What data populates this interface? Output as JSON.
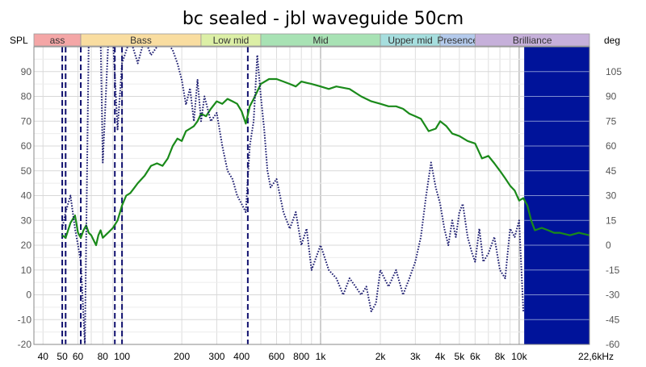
{
  "chart_data": {
    "type": "line",
    "title": "bc sealed - jbl waveguide 50cm",
    "y_left_label": "SPL",
    "y_right_label": "deg",
    "x_scale": "log",
    "xlim": [
      36,
      22600
    ],
    "ylim_left": [
      -20,
      100
    ],
    "ylim_right": [
      -60,
      120
    ],
    "grid": true,
    "x_ticks": [
      {
        "v": 40,
        "label": "40"
      },
      {
        "v": 50,
        "label": "50"
      },
      {
        "v": 60,
        "label": "60"
      },
      {
        "v": 80,
        "label": "80"
      },
      {
        "v": 100,
        "label": "100"
      },
      {
        "v": 200,
        "label": "200"
      },
      {
        "v": 300,
        "label": "300"
      },
      {
        "v": 400,
        "label": "400"
      },
      {
        "v": 600,
        "label": "600"
      },
      {
        "v": 800,
        "label": "800"
      },
      {
        "v": 1000,
        "label": "1k"
      },
      {
        "v": 2000,
        "label": "2k"
      },
      {
        "v": 3000,
        "label": "3k"
      },
      {
        "v": 4000,
        "label": "4k"
      },
      {
        "v": 5000,
        "label": "5k"
      },
      {
        "v": 6000,
        "label": "6k"
      },
      {
        "v": 8000,
        "label": "8k"
      },
      {
        "v": 10000,
        "label": "10k"
      },
      {
        "v": 22600,
        "label": "22,6kHz"
      }
    ],
    "y_left_ticks": [
      -20,
      -10,
      0,
      10,
      20,
      30,
      40,
      50,
      60,
      70,
      80,
      90
    ],
    "y_right_ticks": [
      -60,
      -45,
      -30,
      -15,
      0,
      15,
      30,
      45,
      60,
      75,
      90,
      105
    ],
    "bands": [
      {
        "label": "ass",
        "from": 36,
        "to": 62,
        "color": "#f4a6a6"
      },
      {
        "label": "Bass",
        "from": 62,
        "to": 250,
        "color": "#f9dda0"
      },
      {
        "label": "Low mid",
        "from": 250,
        "to": 500,
        "color": "#dcefa6"
      },
      {
        "label": "Mid",
        "from": 500,
        "to": 2000,
        "color": "#a8e2b4"
      },
      {
        "label": "Upper mid",
        "from": 2000,
        "to": 4000,
        "color": "#a6dede"
      },
      {
        "label": "Presence",
        "from": 4000,
        "to": 6000,
        "color": "#b4caec"
      },
      {
        "label": "Brilliance",
        "from": 6000,
        "to": 22600,
        "color": "#c6b0da"
      }
    ],
    "series": [
      {
        "kind": "magnitude",
        "axis": "left",
        "color": "#1a8a1a",
        "style": "solid",
        "x": [
          50,
          52,
          55,
          58,
          60,
          62,
          64,
          66,
          68,
          70,
          72,
          74,
          76,
          78,
          80,
          85,
          90,
          95,
          100,
          105,
          110,
          115,
          120,
          130,
          140,
          150,
          160,
          170,
          180,
          190,
          200,
          210,
          220,
          230,
          240,
          250,
          265,
          280,
          300,
          320,
          340,
          360,
          380,
          400,
          420,
          440,
          460,
          480,
          500,
          550,
          600,
          650,
          700,
          750,
          800,
          900,
          1000,
          1100,
          1200,
          1400,
          1600,
          1800,
          2000,
          2200,
          2400,
          2600,
          2800,
          3000,
          3200,
          3500,
          3800,
          4000,
          4300,
          4600,
          5000,
          5500,
          6000,
          6500,
          7000,
          7500,
          8000,
          8500,
          9000,
          9500,
          10000,
          10500,
          11000,
          11500,
          12000,
          13000,
          14000,
          15000,
          16000,
          18000,
          20000,
          22600
        ],
        "y": [
          24,
          23,
          29,
          32,
          25,
          23,
          26,
          28,
          25,
          24,
          22,
          20,
          24,
          26,
          23,
          25,
          27,
          30,
          36,
          40,
          41,
          43,
          45,
          48,
          52,
          53,
          52,
          55,
          60,
          63,
          62,
          66,
          67,
          68,
          70,
          73,
          72,
          75,
          78,
          77,
          79,
          78,
          77,
          74,
          69,
          76,
          79,
          82,
          85,
          87,
          87,
          86,
          85,
          84,
          86,
          85,
          84,
          83,
          84,
          83,
          80,
          78,
          77,
          76,
          76,
          75,
          73,
          72,
          71,
          66,
          67,
          70,
          68,
          65,
          64,
          62,
          61,
          55,
          56,
          53,
          50,
          47,
          44,
          42,
          38,
          39,
          36,
          30,
          26,
          27,
          26,
          25,
          25,
          24,
          25,
          24
        ]
      },
      {
        "kind": "phase",
        "axis": "right",
        "color": "#1a1a6e",
        "style": "dotted",
        "x": [
          50,
          52,
          55,
          58,
          60,
          62,
          65,
          68,
          70,
          72,
          75,
          78,
          80,
          85,
          90,
          95,
          100,
          110,
          120,
          130,
          140,
          150,
          160,
          170,
          180,
          190,
          200,
          210,
          220,
          230,
          240,
          250,
          260,
          280,
          300,
          320,
          340,
          360,
          380,
          400,
          420,
          440,
          460,
          480,
          500,
          520,
          540,
          560,
          600,
          650,
          700,
          750,
          800,
          850,
          900,
          1000,
          1100,
          1200,
          1300,
          1400,
          1500,
          1600,
          1700,
          1800,
          1900,
          2000,
          2200,
          2400,
          2600,
          2800,
          3000,
          3200,
          3400,
          3600,
          3800,
          4000,
          4200,
          4400,
          4600,
          4800,
          5000,
          5200,
          5500,
          5800,
          6000,
          6300,
          6600,
          7000,
          7500,
          8000,
          8500,
          9000,
          9500,
          10000,
          10500
        ],
        "y": [
          10,
          20,
          30,
          10,
          0,
          -10,
          -60,
          125,
          125,
          125,
          125,
          125,
          50,
          120,
          125,
          70,
          110,
          125,
          110,
          125,
          115,
          120,
          125,
          122,
          118,
          110,
          100,
          85,
          95,
          75,
          100,
          75,
          90,
          75,
          80,
          60,
          45,
          40,
          30,
          25,
          20,
          60,
          75,
          115,
          90,
          70,
          45,
          35,
          40,
          20,
          10,
          20,
          0,
          10,
          -15,
          0,
          -15,
          -20,
          -30,
          -20,
          -25,
          -30,
          -25,
          -40,
          -35,
          -15,
          -25,
          -15,
          -30,
          -20,
          -10,
          5,
          30,
          50,
          35,
          25,
          10,
          0,
          15,
          5,
          20,
          25,
          5,
          -5,
          -10,
          10,
          -10,
          -5,
          5,
          -15,
          -20,
          10,
          5,
          15,
          -40
        ]
      }
    ],
    "vertical_markers": [
      50,
      52,
      62,
      92,
      100,
      430
    ],
    "highlight_region": {
      "from": 10600,
      "to": 22600,
      "color": "#00139a"
    }
  }
}
